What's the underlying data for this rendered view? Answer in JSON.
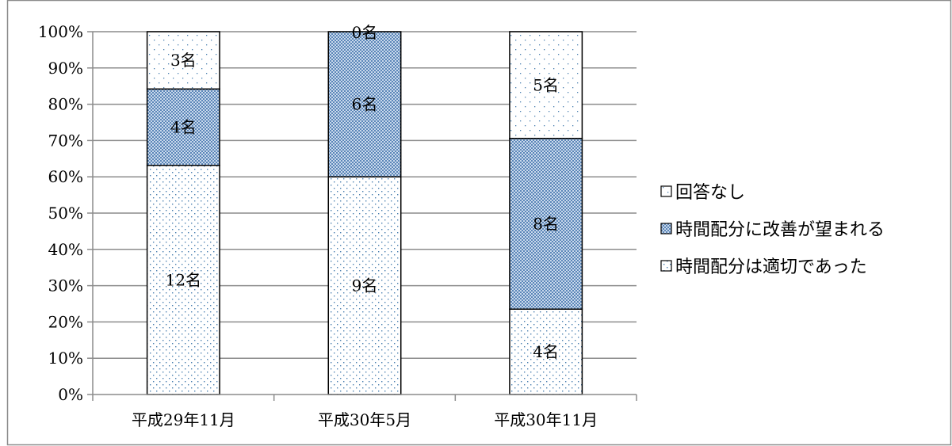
{
  "chart_data": {
    "type": "bar",
    "stacked": true,
    "percent": true,
    "categories": [
      "平成29年11月",
      "平成30年5月",
      "平成30年11月"
    ],
    "series": [
      {
        "name": "時間配分は適切であった",
        "values": [
          12,
          9,
          4
        ],
        "labels": [
          "12名",
          "9名",
          "4名"
        ],
        "pattern": "dots-sparse",
        "color": "#ffffff",
        "dot_color": "#4a7fb0"
      },
      {
        "name": "時間配分に改善が望まれる",
        "values": [
          4,
          6,
          8
        ],
        "labels": [
          "4名",
          "6名",
          "8名"
        ],
        "pattern": "checker",
        "color": "#b8cde6",
        "dot_color": "#4a7fb0"
      },
      {
        "name": "回答なし",
        "values": [
          3,
          0,
          5
        ],
        "labels": [
          "3名",
          "0名",
          "5名"
        ],
        "pattern": "dots-fine",
        "color": "#ffffff",
        "dot_color": "#4a7fb0"
      }
    ],
    "yticks": [
      "0%",
      "10%",
      "20%",
      "30%",
      "40%",
      "50%",
      "60%",
      "70%",
      "80%",
      "90%",
      "100%"
    ],
    "ylim": [
      0,
      100
    ],
    "grid": true,
    "legend_position": "right",
    "legend_order": [
      "回答なし",
      "時間配分に改善が望まれる",
      "時間配分は適切であった"
    ]
  }
}
